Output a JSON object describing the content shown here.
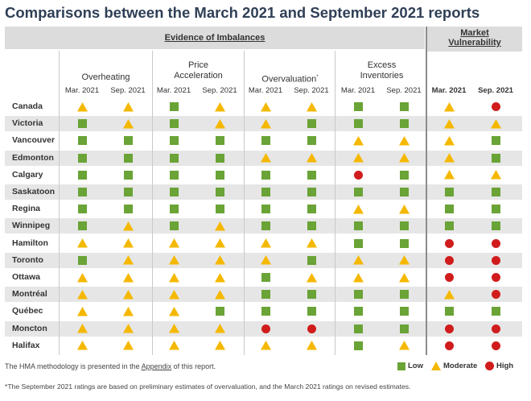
{
  "title": "Comparisons between the March 2021 and September 2021 reports",
  "evidence_header": "Evidence of Imbalances",
  "vulnerability_header_line1": "Market",
  "vulnerability_header_line2": "Vulnerability",
  "groups": [
    {
      "line1": "",
      "line2": "Overheating",
      "sup": ""
    },
    {
      "line1": "Price",
      "line2": "Acceleration",
      "sup": ""
    },
    {
      "line1": "",
      "line2": "Overvaluation",
      "sup": "*"
    },
    {
      "line1": "Excess",
      "line2": "Inventories",
      "sup": ""
    },
    {
      "line1": "",
      "line2": "",
      "sup": ""
    }
  ],
  "period_labels": [
    "Mar. 2021",
    "Sep. 2021"
  ],
  "colors": {
    "low": "#6aa336",
    "moderate": "#f5b800",
    "high": "#d01c1c",
    "title": "#2f3f56"
  },
  "chart_data": {
    "type": "table",
    "columns": [
      "Overheating Mar. 2021",
      "Overheating Sep. 2021",
      "Price Acceleration Mar. 2021",
      "Price Acceleration Sep. 2021",
      "Overvaluation Mar. 2021",
      "Overvaluation Sep. 2021",
      "Excess Inventories Mar. 2021",
      "Excess Inventories Sep. 2021",
      "Market Vulnerability Mar. 2021",
      "Market Vulnerability Sep. 2021"
    ],
    "rows": [
      {
        "city": "Canada",
        "ratings": [
          "moderate",
          "moderate",
          "low",
          "moderate",
          "moderate",
          "moderate",
          "low",
          "low",
          "moderate",
          "high"
        ]
      },
      {
        "city": "Victoria",
        "ratings": [
          "low",
          "moderate",
          "low",
          "moderate",
          "moderate",
          "low",
          "low",
          "low",
          "moderate",
          "moderate"
        ]
      },
      {
        "city": "Vancouver",
        "ratings": [
          "low",
          "low",
          "low",
          "low",
          "low",
          "low",
          "moderate",
          "moderate",
          "moderate",
          "low"
        ]
      },
      {
        "city": "Edmonton",
        "ratings": [
          "low",
          "low",
          "low",
          "low",
          "moderate",
          "moderate",
          "moderate",
          "moderate",
          "moderate",
          "low"
        ]
      },
      {
        "city": "Calgary",
        "ratings": [
          "low",
          "low",
          "low",
          "low",
          "low",
          "low",
          "high",
          "low",
          "moderate",
          "moderate"
        ]
      },
      {
        "city": "Saskatoon",
        "ratings": [
          "low",
          "low",
          "low",
          "low",
          "low",
          "low",
          "low",
          "low",
          "low",
          "low"
        ]
      },
      {
        "city": "Regina",
        "ratings": [
          "low",
          "low",
          "low",
          "low",
          "low",
          "low",
          "moderate",
          "moderate",
          "low",
          "low"
        ]
      },
      {
        "city": "Winnipeg",
        "ratings": [
          "low",
          "moderate",
          "low",
          "moderate",
          "low",
          "low",
          "low",
          "low",
          "low",
          "low"
        ]
      },
      {
        "city": "Hamilton",
        "ratings": [
          "moderate",
          "moderate",
          "moderate",
          "moderate",
          "moderate",
          "moderate",
          "low",
          "low",
          "high",
          "high"
        ]
      },
      {
        "city": "Toronto",
        "ratings": [
          "low",
          "moderate",
          "moderate",
          "moderate",
          "moderate",
          "low",
          "moderate",
          "moderate",
          "high",
          "high"
        ]
      },
      {
        "city": "Ottawa",
        "ratings": [
          "moderate",
          "moderate",
          "moderate",
          "moderate",
          "low",
          "moderate",
          "moderate",
          "moderate",
          "high",
          "high"
        ]
      },
      {
        "city": "Montréal",
        "ratings": [
          "moderate",
          "moderate",
          "moderate",
          "moderate",
          "low",
          "low",
          "low",
          "low",
          "moderate",
          "high"
        ]
      },
      {
        "city": "Québec",
        "ratings": [
          "moderate",
          "moderate",
          "moderate",
          "low",
          "low",
          "low",
          "low",
          "low",
          "low",
          "low"
        ]
      },
      {
        "city": "Moncton",
        "ratings": [
          "moderate",
          "moderate",
          "moderate",
          "moderate",
          "high",
          "high",
          "low",
          "low",
          "high",
          "high"
        ]
      },
      {
        "city": "Halifax",
        "ratings": [
          "moderate",
          "moderate",
          "moderate",
          "moderate",
          "moderate",
          "moderate",
          "low",
          "moderate",
          "high",
          "high"
        ]
      }
    ]
  },
  "note": {
    "prefix": "The HMA methodology is presented in the ",
    "link": "Appendix",
    "suffix": " of this report."
  },
  "legend": {
    "low": "Low",
    "moderate": "Moderate",
    "high": "High"
  },
  "footnote": "*The September 2021 ratings are based on preliminary estimates of overvaluation, and the March 2021 ratings on revised estimates."
}
